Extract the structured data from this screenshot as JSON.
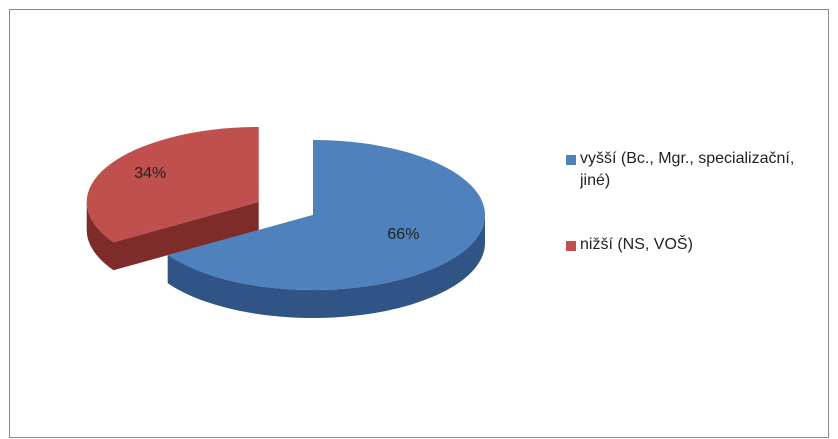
{
  "chart_data": {
    "type": "pie",
    "categories": [
      "vyšší (Bc., Mgr., specializační, jiné)",
      "nižší (NS, VOŠ)"
    ],
    "values": [
      66,
      34
    ],
    "value_labels": [
      "66%",
      "34%"
    ],
    "colors": [
      "#4f81bd",
      "#c0504d"
    ],
    "side_colors": [
      "#2f5485",
      "#7d2c2a"
    ],
    "exploded": [
      false,
      true
    ],
    "legend": "right"
  }
}
